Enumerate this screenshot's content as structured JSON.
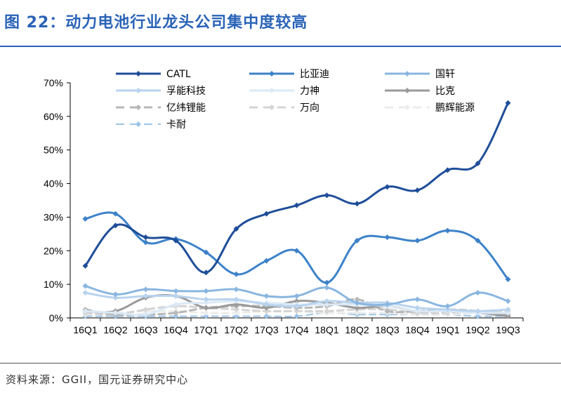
{
  "header": {
    "title": "图 22：动力电池行业龙头公司集中度较高"
  },
  "footer": {
    "source": "资料来源：GGII，国元证券研究中心"
  },
  "chart_data": {
    "type": "line",
    "title": "图 22：动力电池行业龙头公司集中度较高",
    "xlabel": "",
    "ylabel": "",
    "ylim": [
      0,
      70
    ],
    "y_ticks": [
      "0%",
      "10%",
      "20%",
      "30%",
      "40%",
      "50%",
      "60%",
      "70%"
    ],
    "legend_position": "top",
    "categories": [
      "16Q1",
      "16Q2",
      "16Q3",
      "16Q4",
      "17Q1",
      "17Q2",
      "17Q3",
      "17Q4",
      "18Q1",
      "18Q2",
      "18Q3",
      "18Q4",
      "19Q1",
      "19Q2",
      "19Q3"
    ],
    "series": [
      {
        "name": "CATL",
        "color": "#1f4e99",
        "dash": false,
        "width": 3,
        "values": [
          15.5,
          27.5,
          24,
          23,
          13.5,
          26.5,
          31,
          33.5,
          36.5,
          34,
          39,
          38,
          44,
          46,
          64
        ]
      },
      {
        "name": "比亚迪",
        "color": "#3d82c9",
        "dash": false,
        "width": 3,
        "values": [
          29.5,
          31,
          22.5,
          23.5,
          19.5,
          13,
          17,
          20,
          10.5,
          23,
          24,
          23,
          26,
          23,
          11.5
        ]
      },
      {
        "name": "国轩",
        "color": "#8ab6e0",
        "dash": false,
        "width": 3,
        "values": [
          9.5,
          7,
          8.5,
          8,
          8,
          8.5,
          6.5,
          6.5,
          9,
          4.5,
          4,
          5.5,
          3.5,
          7.5,
          5
        ]
      },
      {
        "name": "孚能科技",
        "color": "#b8d3ee",
        "dash": false,
        "width": 3,
        "values": [
          7.5,
          6,
          6.5,
          6.5,
          5.5,
          5.5,
          4,
          3.5,
          5,
          4.5,
          4.5,
          3,
          2.5,
          2,
          2.5
        ]
      },
      {
        "name": "力神",
        "color": "#dbe9f6",
        "dash": false,
        "width": 3,
        "values": [
          2,
          1.5,
          1,
          4,
          4.5,
          5,
          4.5,
          4,
          4,
          4,
          3.5,
          2,
          2,
          1.5,
          1.5
        ]
      },
      {
        "name": "比克",
        "color": "#9a9a9a",
        "dash": false,
        "width": 3,
        "values": [
          2,
          2,
          6,
          6.5,
          3,
          4,
          3,
          5,
          4.5,
          3,
          3.5,
          2,
          2,
          1.5,
          0.5
        ]
      },
      {
        "name": "亿纬锂能",
        "color": "#b7b7b7",
        "dash": true,
        "width": 3,
        "values": [
          2.5,
          1,
          1,
          1.5,
          3,
          3.5,
          3.5,
          3,
          3.5,
          5.5,
          2,
          2,
          2.5,
          2,
          1
        ]
      },
      {
        "name": "万向",
        "color": "#d4d4d4",
        "dash": true,
        "width": 3,
        "values": [
          1.5,
          1,
          2.5,
          3.5,
          3,
          2.5,
          2,
          2,
          2,
          2.5,
          2.5,
          1.5,
          1.5,
          2,
          2
        ]
      },
      {
        "name": "鹏辉能源",
        "color": "#ececec",
        "dash": true,
        "width": 3,
        "values": [
          1,
          1.5,
          2,
          2,
          1.5,
          1.5,
          2,
          2,
          1.5,
          1.5,
          1.5,
          1,
          1,
          1.5,
          1
        ]
      },
      {
        "name": "卡耐",
        "color": "#9cc3e8",
        "dash": true,
        "width": 2,
        "values": [
          0.5,
          0.5,
          0.5,
          0.5,
          0.5,
          0.5,
          0.5,
          0.5,
          1.5,
          1,
          1,
          1,
          1,
          0.5,
          0.5
        ]
      }
    ]
  }
}
